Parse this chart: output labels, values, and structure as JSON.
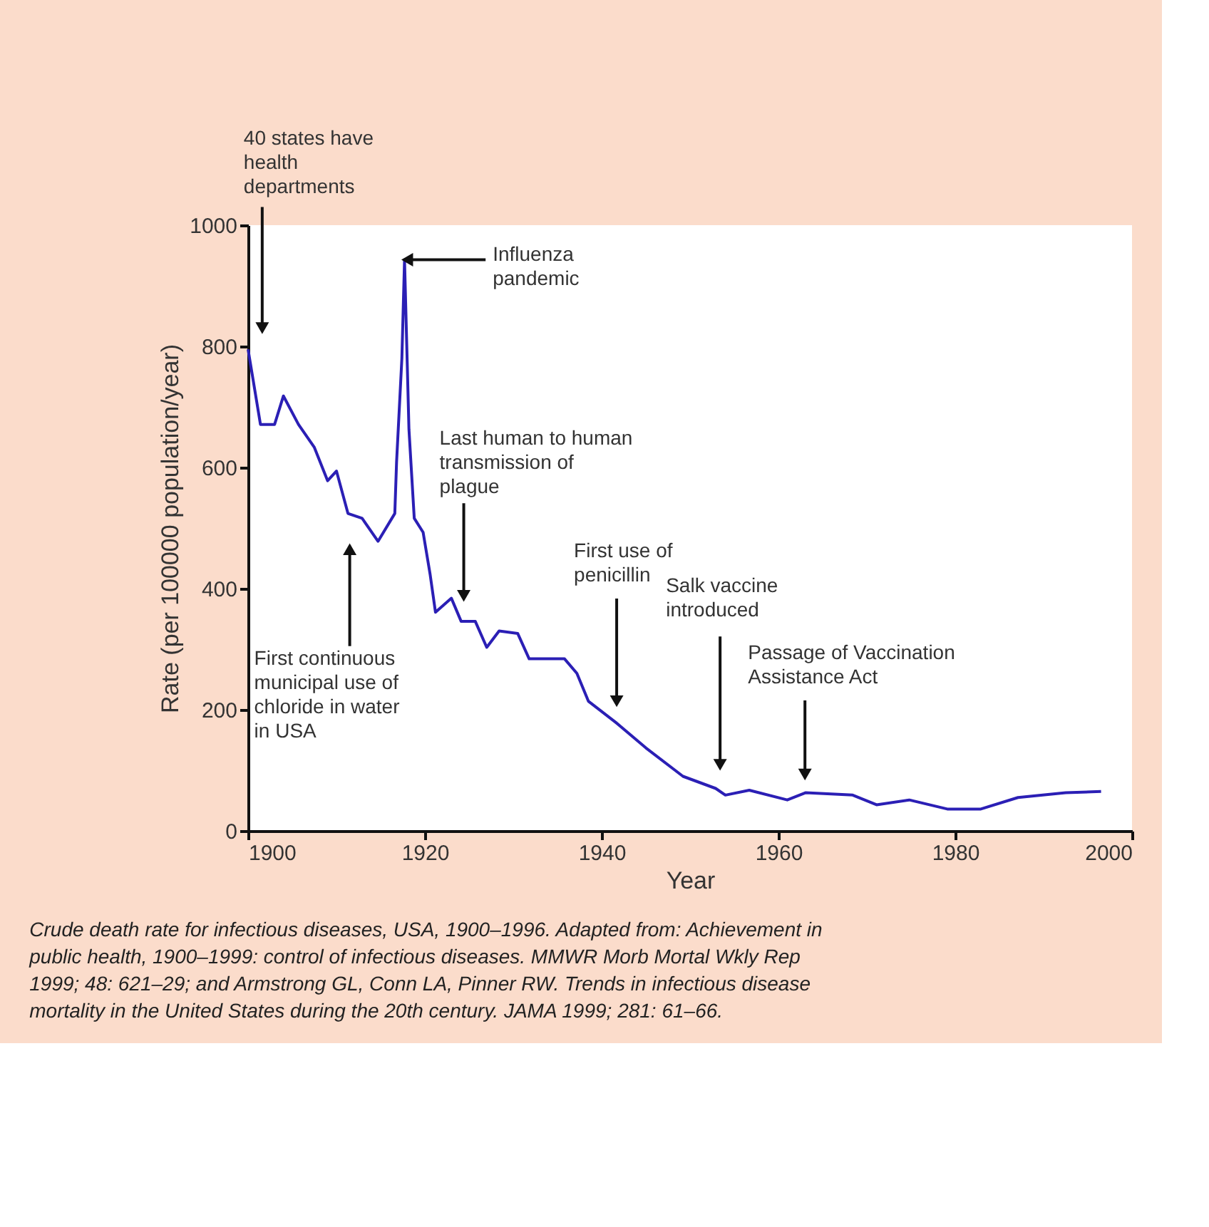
{
  "chart_data": {
    "type": "line",
    "xlabel": "Year",
    "ylabel": "Rate (per 100000 population/year)",
    "xlim": [
      1900,
      2000
    ],
    "ylim": [
      0,
      1000
    ],
    "xticks": [
      1900,
      1920,
      1940,
      1960,
      1980,
      2000
    ],
    "yticks": [
      0,
      200,
      400,
      600,
      800,
      1000
    ],
    "grid": false,
    "marker": "none",
    "line_style": "solid",
    "series": [
      {
        "color": "#2b1fb5",
        "x": [
          1900,
          1901.4,
          1903,
          1904,
          1905.7,
          1907.5,
          1909,
          1910,
          1911.3,
          1912.9,
          1914.7,
          1916.6,
          1916.8,
          1917.4,
          1917.7,
          1918.2,
          1918.8,
          1919.8,
          1920.6,
          1921.2,
          1923,
          1924.1,
          1925.7,
          1927,
          1928.4,
          1930.5,
          1931.8,
          1935.8,
          1937.2,
          1938.5,
          1941.6,
          1945,
          1949.2,
          1952.9,
          1954,
          1956.7,
          1961,
          1963.1,
          1968.4,
          1971.1,
          1974.8,
          1979.1,
          1982.9,
          1987.1,
          1992.5,
          1996.5
        ],
        "values": [
          795,
          671,
          671,
          718,
          671,
          633,
          578,
          594,
          524,
          516,
          478,
          524,
          609,
          780,
          943,
          663,
          516,
          493,
          423,
          361,
          384,
          346,
          346,
          303,
          330,
          326,
          284,
          284,
          260,
          214,
          179,
          137,
          90,
          70,
          59,
          67,
          51,
          63,
          59,
          43,
          51,
          36,
          36,
          55,
          63,
          65
        ]
      }
    ],
    "annotations": [
      {
        "text": "40 states have health departments",
        "x": 1901.6,
        "y": 830
      },
      {
        "text": "Influenza pandemic",
        "x": 1918,
        "y": 943
      },
      {
        "text": "Last human to human transmission of plague",
        "x": 1924.4,
        "y": 388
      },
      {
        "text": "First continuous municipal use of chloride in water in USA",
        "x": 1911.5,
        "y": 465
      },
      {
        "text": "First use of penicillin",
        "x": 1941.7,
        "y": 214
      },
      {
        "text": "Salk vaccine introduced",
        "x": 1953.4,
        "y": 109
      },
      {
        "text": "Passage of Vaccination Assistance Act",
        "x": 1963,
        "y": 93
      },
      "Crude death rate for infectious diseases, USA, 1900–1996. Adapted from: Achievement in public health, 1900–1999: control of infectious diseases. MMWR Morb Mortal Wkly Rep 1999; 48: 621–29; and Armstrong GL, Conn LA, Pinner RW. Trends in infectious disease mortality in the United States during the 20th century. JAMA 1999; 281: 61–66."
    ]
  }
}
